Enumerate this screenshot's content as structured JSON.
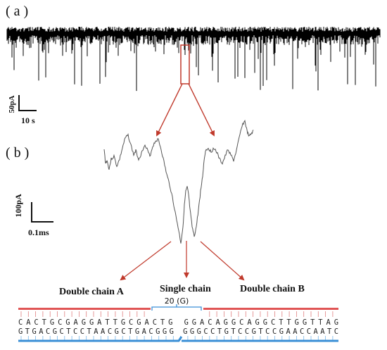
{
  "panel_a": {
    "label": "( a )",
    "scale_current": "50pA",
    "scale_time": "10 s"
  },
  "panel_b": {
    "label": "( b )",
    "scale_current": "100pA",
    "scale_time": "0.1ms"
  },
  "segments": {
    "double_a": "Double chain A",
    "single": "Single chain",
    "double_b": "Double chain B"
  },
  "dna": {
    "bracket_label": "20 (G)",
    "top_strand": "CACTGCGAGGATTGCGACTG GGACAGGCAGGCTTGGTTAG",
    "bottom_strand": "GTGACGCTCCTAACGCTGACGGG GGGCCTGTCCGTCCGAACCAATC"
  },
  "colors": {
    "trace": "#000000",
    "event_trace": "#555555",
    "arrow": "#c0392b",
    "highlight_box": "#c0392b",
    "strand_a_bar": "#e05555",
    "strand_b_bar": "#3a8fd6",
    "bracket": "#3a8fd6"
  }
}
